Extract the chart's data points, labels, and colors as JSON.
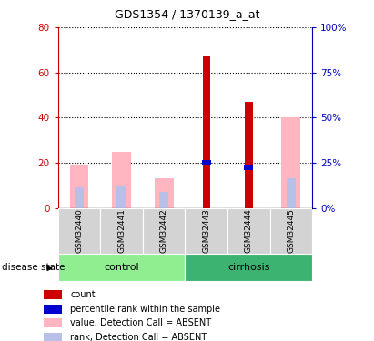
{
  "title": "GDS1354 / 1370139_a_at",
  "samples": [
    "GSM32440",
    "GSM32441",
    "GSM32442",
    "GSM32443",
    "GSM32444",
    "GSM32445"
  ],
  "ylim_left": [
    0,
    80
  ],
  "ylim_right": [
    0,
    100
  ],
  "yticks_left": [
    0,
    20,
    40,
    60,
    80
  ],
  "yticks_right": [
    0,
    25,
    50,
    75,
    100
  ],
  "ytick_labels_left": [
    "0",
    "20",
    "40",
    "60",
    "80"
  ],
  "ytick_labels_right": [
    "0%",
    "25%",
    "50%",
    "75%",
    "100%"
  ],
  "red_bars": [
    0,
    0,
    0,
    67,
    47,
    0
  ],
  "blue_bars": [
    0,
    0,
    0,
    20,
    18,
    0
  ],
  "pink_bars": [
    19,
    25,
    13,
    0,
    0,
    40
  ],
  "lavender_bars": [
    9,
    10,
    7,
    0,
    0,
    13
  ],
  "red_color": "#CC0000",
  "blue_color": "#0000CC",
  "pink_color": "#FFB6C1",
  "lavender_color": "#B8C0E8",
  "left_axis_color": "#CC0000",
  "right_axis_color": "#0000BB",
  "legend_items": [
    "count",
    "percentile rank within the sample",
    "value, Detection Call = ABSENT",
    "rank, Detection Call = ABSENT"
  ],
  "legend_colors": [
    "#CC0000",
    "#0000CC",
    "#FFB6C1",
    "#B8C0E8"
  ]
}
